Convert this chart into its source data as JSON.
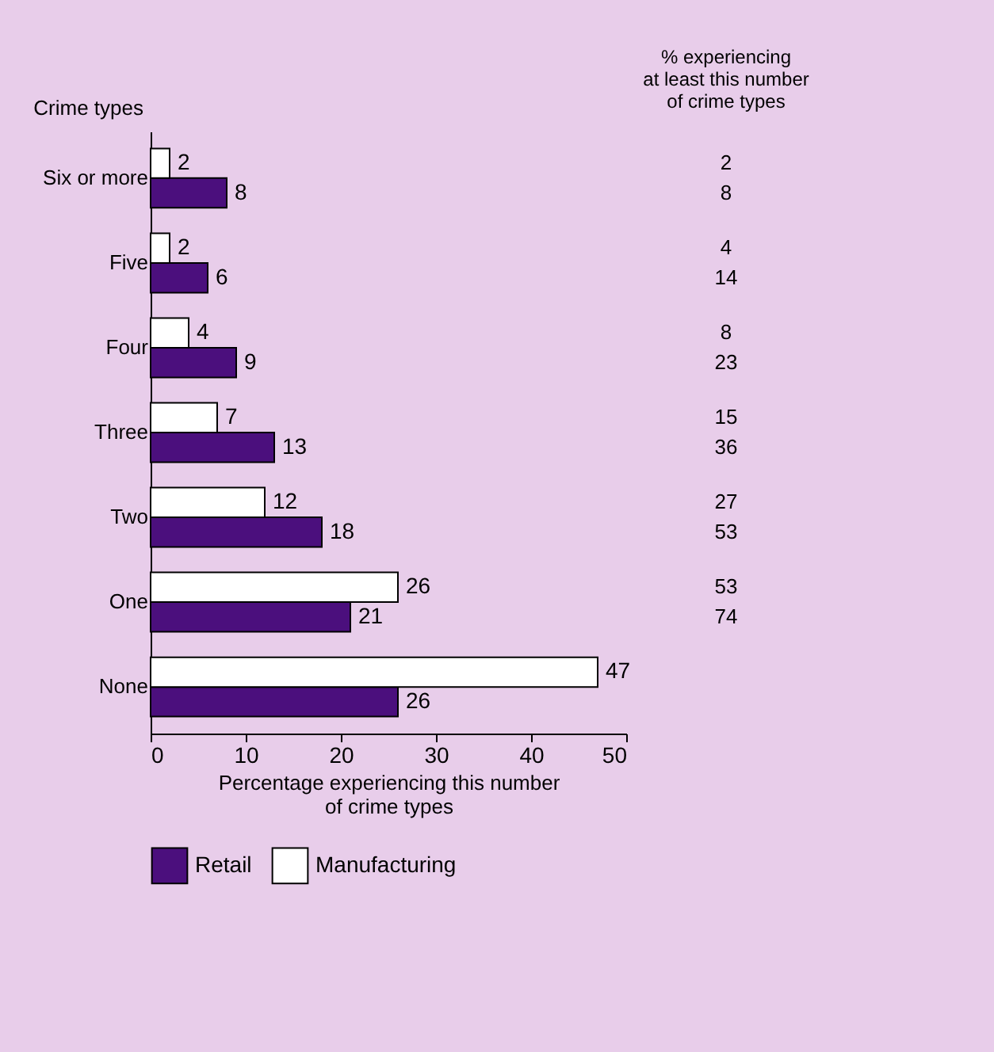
{
  "chart_data": {
    "type": "bar",
    "orientation": "horizontal",
    "ylabel": "Crime types",
    "xlabel": "Percentage experiencing this number\nof crime types",
    "categories": [
      "Six or more",
      "Five",
      "Four",
      "Three",
      "Two",
      "One",
      "None"
    ],
    "series": [
      {
        "name": "Retail",
        "color": "#4b0f7d",
        "values": [
          8,
          6,
          9,
          13,
          18,
          21,
          26
        ]
      },
      {
        "name": "Manufacturing",
        "color": "#ffffff",
        "values": [
          2,
          2,
          4,
          7,
          12,
          26,
          47
        ]
      }
    ],
    "xlim": [
      0,
      50
    ],
    "xticks": [
      0,
      10,
      20,
      30,
      40,
      50
    ],
    "grid": false,
    "legend": "bottom",
    "data_labels": true,
    "annotations": [
      "% experiencing\nat least this number\nof crime types",
      "2",
      "8",
      "4",
      "14",
      "8",
      "23",
      "15",
      "36",
      "27",
      "53",
      "53",
      "74"
    ]
  }
}
